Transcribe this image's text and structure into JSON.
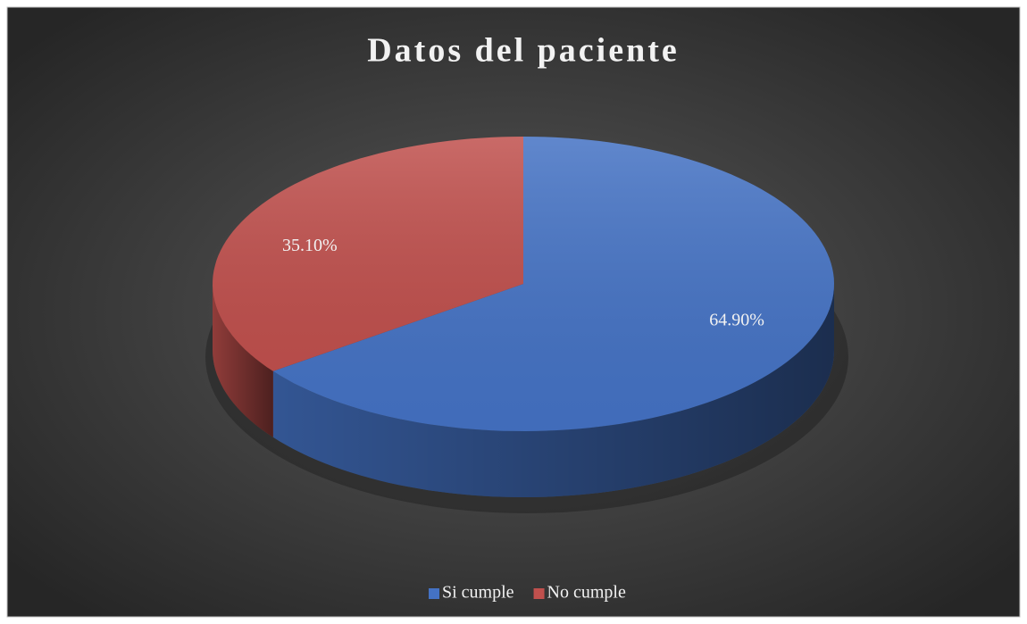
{
  "chart_data": {
    "type": "pie3d",
    "title": "Datos del paciente",
    "categories": [
      "Si cumple",
      "No cumple"
    ],
    "values": [
      64.9,
      35.1
    ],
    "value_labels": [
      "64.90%",
      "35.10%"
    ],
    "colors": [
      "#4472c4",
      "#c0504d"
    ],
    "legend": "bottom"
  }
}
